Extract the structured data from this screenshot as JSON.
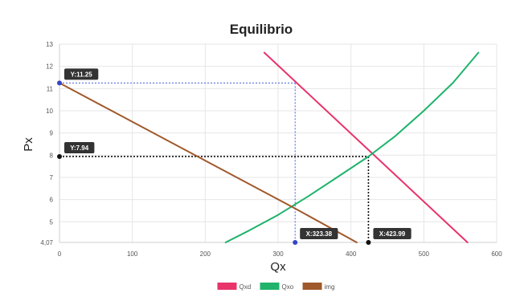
{
  "chart_data": {
    "type": "line",
    "title": "Equilibrio",
    "xlabel": "Qx",
    "ylabel": "Px",
    "xlim": [
      0,
      600
    ],
    "ylim": [
      4.07,
      13
    ],
    "x_ticks": [
      0,
      100,
      200,
      300,
      400,
      500,
      600
    ],
    "y_ticks": [
      4.07,
      5,
      6,
      7,
      8,
      9,
      10,
      11,
      12,
      13
    ],
    "y_tick_labels": [
      "4,07",
      "5",
      "6",
      "7",
      "8",
      "9",
      "10",
      "11",
      "12",
      "13"
    ],
    "grid": true,
    "legend_position": "bottom",
    "series": [
      {
        "name": "Qxd",
        "color": "#e8336b",
        "x": [
          281,
          560
        ],
        "y": [
          12.62,
          4.07
        ]
      },
      {
        "name": "Qxo",
        "color": "#1fb36b",
        "x": [
          228,
          260,
          300,
          340,
          380,
          423.99,
          460,
          500,
          540,
          575
        ],
        "y": [
          4.07,
          4.6,
          5.31,
          6.12,
          6.98,
          7.94,
          8.84,
          10.0,
          11.26,
          12.62
        ]
      },
      {
        "name": "img",
        "color": "#a0592b",
        "x": [
          0,
          323.38,
          408
        ],
        "y": [
          11.25,
          5.6,
          4.07
        ]
      }
    ],
    "guides": [
      {
        "label": "Y:11.25",
        "x": 323.38,
        "y": 11.25,
        "axis": "y",
        "color": "#4b5bd6"
      },
      {
        "label": "X:323.38",
        "x": 323.38,
        "y": 11.25,
        "axis": "x",
        "color": "#4b5bd6"
      },
      {
        "label": "Y:7.94",
        "x": 423.99,
        "y": 7.94,
        "axis": "y",
        "color": "#111111"
      },
      {
        "label": "X:423.99",
        "x": 423.99,
        "y": 7.94,
        "axis": "x",
        "color": "#111111"
      }
    ]
  }
}
